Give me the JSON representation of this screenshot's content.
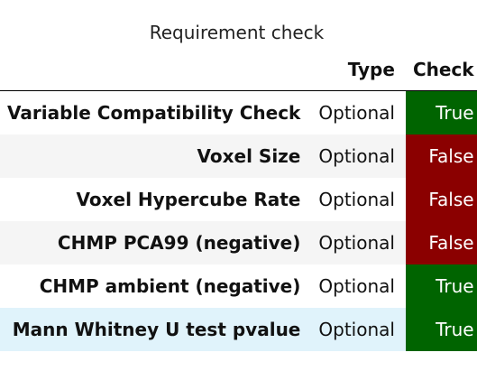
{
  "caption": "Requirement check",
  "headers": {
    "name": "",
    "type": "Type",
    "check": "Check"
  },
  "colors": {
    "true_bg": "#006400",
    "false_bg": "#8b0000",
    "hover_row_bg": "#e0f3fb",
    "stripe_bg": "#f5f5f5"
  },
  "rows": [
    {
      "name": "Variable Compatibility Check",
      "type": "Optional",
      "check": "True"
    },
    {
      "name": "Voxel Size",
      "type": "Optional",
      "check": "False"
    },
    {
      "name": "Voxel Hypercube Rate",
      "type": "Optional",
      "check": "False"
    },
    {
      "name": "CHMP PCA99 (negative)",
      "type": "Optional",
      "check": "False"
    },
    {
      "name": "CHMP ambient (negative)",
      "type": "Optional",
      "check": "True"
    },
    {
      "name": "Mann Whitney U test pvalue",
      "type": "Optional",
      "check": "True"
    }
  ]
}
